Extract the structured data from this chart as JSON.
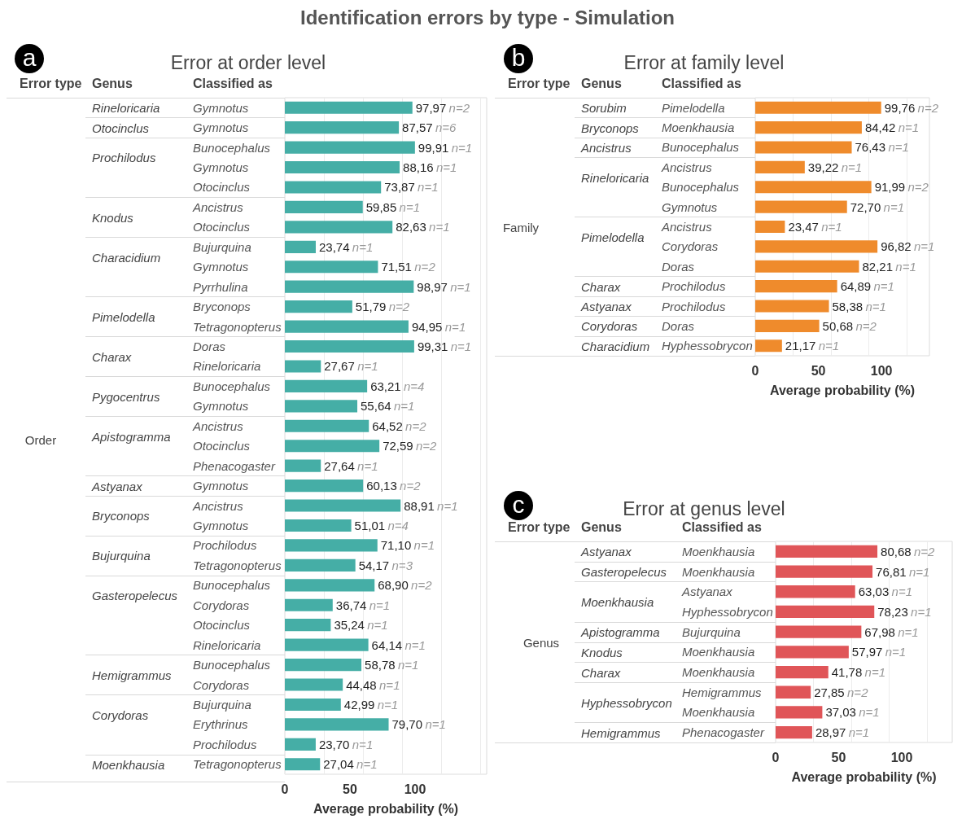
{
  "chart_data": [
    {
      "type": "bar",
      "orientation": "horizontal",
      "title": "Error at order level",
      "xlabel": "Average probability (%)",
      "annotations": [
        "a",
        "Error type",
        "Genus",
        "Classified as",
        "Order",
        "Identification errors by type - Simulation"
      ],
      "categories": [
        "Gymnotus",
        "Gymnotus",
        "Bunocephalus",
        "Gymnotus",
        "Otocinclus",
        "Ancistrus",
        "Otocinclus",
        "Bujurquina",
        "Gymnotus",
        "Pyrrhulina",
        "Bryconops",
        "Tetragonopterus",
        "Doras",
        "Rineloricaria",
        "Bunocephalus",
        "Gymnotus",
        "Ancistrus",
        "Otocinclus",
        "Phenacogaster",
        "Gymnotus",
        "Ancistrus",
        "Gymnotus",
        "Prochilodus",
        "Tetragonopterus",
        "Bunocephalus",
        "Corydoras",
        "Otocinclus",
        "Rineloricaria",
        "Bunocephalus",
        "Corydoras",
        "Bujurquina",
        "Erythrinus",
        "Prochilodus",
        "Tetragonopterus"
      ],
      "y2_categories": [
        "Rineloricaria",
        "Otocinclus",
        "Prochilodus",
        null,
        null,
        "Knodus",
        null,
        "Characidium",
        null,
        null,
        "Pimelodella",
        null,
        "Charax",
        null,
        "Pygocentrus",
        null,
        "Apistogramma",
        null,
        null,
        "Astyanax",
        "Bryconops",
        null,
        "Bujurquina",
        null,
        "Gasteropelecus",
        null,
        null,
        null,
        "Hemigrammus",
        null,
        "Corydoras",
        null,
        null,
        "Moenkhausia"
      ],
      "values": [
        97.97,
        87.57,
        99.91,
        88.16,
        73.87,
        59.85,
        82.63,
        23.74,
        71.51,
        98.97,
        51.79,
        94.95,
        99.31,
        27.67,
        63.21,
        55.64,
        64.52,
        72.59,
        27.64,
        60.13,
        88.91,
        51.01,
        71.1,
        54.17,
        68.9,
        36.74,
        35.24,
        64.14,
        58.78,
        44.48,
        42.99,
        79.7,
        23.7,
        27.04
      ],
      "value_labels": [
        "97,97 n=2",
        "87,57 n=6",
        "99,91 n=1",
        "88,16 n=1",
        "73,87 n=1",
        "59,85 n=1",
        "82,63 n=1",
        "23,74 n=1",
        "71,51 n=2",
        "98,97 n=1",
        "51,79 n=2",
        "94,95 n=1",
        "99,31 n=1",
        "27,67 n=1",
        "63,21 n=4",
        "55,64 n=1",
        "64,52 n=2",
        "72,59 n=2",
        "27,64 n=1",
        "60,13 n=2",
        "88,91 n=1",
        "51,01 n=4",
        "71,10 n=1",
        "54,17 n=3",
        "68,90 n=2",
        "36,74 n=1",
        "35,24 n=1",
        "64,14 n=1",
        "58,78 n=1",
        "44,48 n=1",
        "42,99 n=1",
        "79,70 n=1",
        "23,70 n=1",
        "27,04 n=1"
      ],
      "color": "#45aea6",
      "xlim": [
        0,
        155
      ],
      "xticks": [
        0,
        50,
        100
      ],
      "grid": "x"
    },
    {
      "type": "bar",
      "orientation": "horizontal",
      "title": "Error at family level",
      "xlabel": "Average probability (%)",
      "annotations": [
        "b",
        "Error type",
        "Genus",
        "Classified as",
        "Family"
      ],
      "categories": [
        "Pimelodella",
        "Moenkhausia",
        "Bunocephalus",
        "Ancistrus",
        "Bunocephalus",
        "Gymnotus",
        "Ancistrus",
        "Corydoras",
        "Doras",
        "Prochilodus",
        "Prochilodus",
        "Doras",
        "Hyphessobrycon"
      ],
      "y2_categories": [
        "Sorubim",
        "Bryconops",
        "Ancistrus",
        "Rineloricaria",
        null,
        null,
        "Pimelodella",
        null,
        null,
        "Charax",
        "Astyanax",
        "Corydoras",
        "Characidium"
      ],
      "values": [
        99.76,
        84.42,
        76.43,
        39.22,
        91.99,
        72.7,
        23.47,
        96.82,
        82.21,
        64.89,
        58.38,
        50.68,
        21.17
      ],
      "value_labels": [
        "99,76 n=2",
        "84,42 n=1",
        "76,43 n=1",
        "39,22 n=1",
        "91,99 n=2",
        "72,70 n=1",
        "23,47 n=1",
        "96,82 n=1",
        "82,21 n=1",
        "64,89 n=1",
        "58,38 n=1",
        "50,68 n=2",
        "21,17 n=1"
      ],
      "color": "#ef8b2c",
      "xlim": [
        0,
        138
      ],
      "xticks": [
        0,
        50,
        100
      ],
      "grid": "x"
    },
    {
      "type": "bar",
      "orientation": "horizontal",
      "title": "Error at genus level",
      "xlabel": "Average probability (%)",
      "annotations": [
        "c",
        "Error type",
        "Genus",
        "Classified as",
        "Genus"
      ],
      "categories": [
        "Moenkhausia",
        "Moenkhausia",
        "Astyanax",
        "Hyphessobrycon",
        "Bujurquina",
        "Moenkhausia",
        "Moenkhausia",
        "Hemigrammus",
        "Moenkhausia",
        "Phenacogaster"
      ],
      "y2_categories": [
        "Astyanax",
        "Gasteropelecus",
        "Moenkhausia",
        null,
        "Apistogramma",
        "Knodus",
        "Charax",
        "Hyphessobrycon",
        null,
        "Hemigrammus"
      ],
      "values": [
        80.68,
        76.81,
        63.03,
        78.23,
        67.98,
        57.97,
        41.78,
        27.85,
        37.03,
        28.97
      ],
      "value_labels": [
        "80,68 n=2",
        "76,81 n=1",
        "63,03 n=1",
        "78,23 n=1",
        "67,98 n=1",
        "57,97 n=1",
        "41,78 n=1",
        "27,85 n=2",
        "37,03 n=1",
        "28,97 n=1"
      ],
      "color": "#e05558",
      "xlim": [
        0,
        140
      ],
      "xticks": [
        0,
        50,
        100
      ],
      "grid": "x"
    }
  ]
}
